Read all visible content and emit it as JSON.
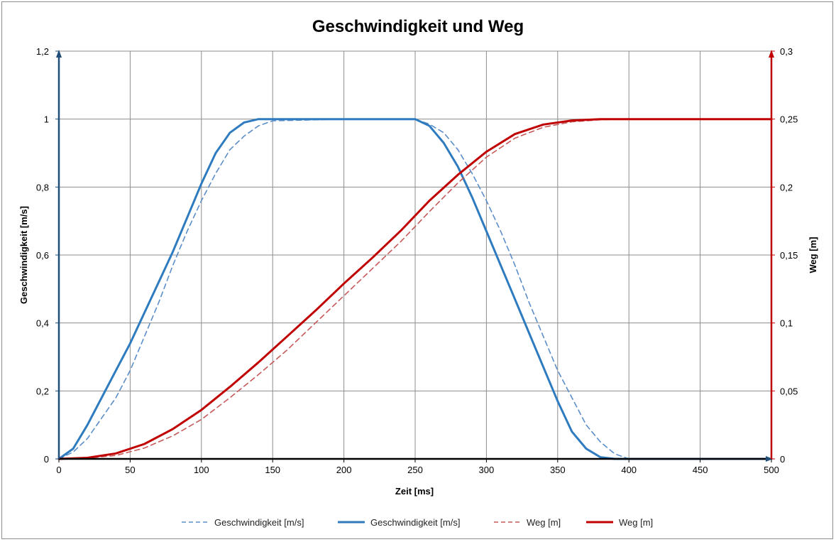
{
  "chart_data": {
    "type": "line",
    "title": "Geschwindigkeit und Weg",
    "xlabel": "Zeit [ms]",
    "ylabel": "Geschwindigkeit [m/s]",
    "y2label": "Weg [m]",
    "xlim": [
      0,
      500
    ],
    "ylim": [
      0,
      1.2
    ],
    "y2lim": [
      0,
      0.3
    ],
    "grid": true,
    "legend_position": "bottom",
    "x_ticks": [
      "0",
      "50",
      "100",
      "150",
      "200",
      "250",
      "300",
      "350",
      "400",
      "450",
      "500"
    ],
    "y_ticks": [
      "0",
      "0,2",
      "0,4",
      "0,6",
      "0,8",
      "1",
      "1,2"
    ],
    "y2_ticks": [
      "0",
      "0,05",
      "0,1",
      "0,15",
      "0,2",
      "0,25",
      "0,3"
    ],
    "colors": {
      "velocity": "#2e7bbf",
      "velocity_dashed": "#5b8ec9",
      "distance": "#c00000",
      "distance_dashed": "#c55a5a",
      "left_axis": "#1f4e79",
      "right_axis": "#c00000",
      "grid": "#8c8c8c"
    },
    "series": [
      {
        "name": "Geschwindigkeit [m/s]",
        "axis": "left",
        "style": "dashed",
        "x": [
          0,
          10,
          20,
          30,
          40,
          50,
          60,
          70,
          80,
          90,
          100,
          110,
          120,
          130,
          140,
          150,
          200,
          250,
          260,
          270,
          280,
          290,
          300,
          310,
          320,
          330,
          340,
          350,
          360,
          370,
          380,
          390,
          400,
          450,
          500
        ],
        "values": [
          0,
          0.02,
          0.06,
          0.12,
          0.18,
          0.26,
          0.36,
          0.46,
          0.57,
          0.67,
          0.76,
          0.84,
          0.91,
          0.95,
          0.98,
          0.995,
          1,
          1,
          0.985,
          0.96,
          0.91,
          0.84,
          0.76,
          0.67,
          0.57,
          0.46,
          0.36,
          0.26,
          0.18,
          0.1,
          0.05,
          0.015,
          0,
          0,
          0
        ]
      },
      {
        "name": "Geschwindigkeit [m/s]",
        "axis": "left",
        "style": "solid",
        "x": [
          0,
          10,
          20,
          30,
          40,
          50,
          60,
          70,
          80,
          90,
          100,
          110,
          120,
          130,
          140,
          150,
          200,
          250,
          260,
          270,
          280,
          290,
          300,
          310,
          320,
          330,
          340,
          350,
          360,
          370,
          380,
          390,
          400,
          450,
          500
        ],
        "values": [
          0,
          0.03,
          0.1,
          0.18,
          0.26,
          0.34,
          0.43,
          0.52,
          0.61,
          0.71,
          0.81,
          0.9,
          0.96,
          0.99,
          1.0,
          1.0,
          1.0,
          1.0,
          0.98,
          0.93,
          0.86,
          0.77,
          0.67,
          0.57,
          0.47,
          0.37,
          0.27,
          0.17,
          0.08,
          0.03,
          0.005,
          0,
          0,
          0,
          0
        ]
      },
      {
        "name": "Weg [m]",
        "axis": "right",
        "style": "dashed",
        "x": [
          0,
          20,
          40,
          60,
          80,
          100,
          120,
          140,
          160,
          180,
          200,
          220,
          240,
          260,
          280,
          300,
          320,
          340,
          360,
          380,
          400,
          450,
          500
        ],
        "values": [
          0,
          0.0005,
          0.0025,
          0.008,
          0.017,
          0.029,
          0.045,
          0.062,
          0.08,
          0.1,
          0.12,
          0.14,
          0.16,
          0.182,
          0.203,
          0.222,
          0.236,
          0.244,
          0.248,
          0.2495,
          0.25,
          0.25,
          0.25
        ]
      },
      {
        "name": "Weg [m]",
        "axis": "right",
        "style": "solid",
        "x": [
          0,
          20,
          40,
          60,
          80,
          100,
          120,
          140,
          160,
          180,
          200,
          220,
          240,
          260,
          280,
          300,
          320,
          340,
          360,
          380,
          400,
          450,
          500
        ],
        "values": [
          0,
          0.0008,
          0.004,
          0.011,
          0.022,
          0.036,
          0.053,
          0.071,
          0.09,
          0.109,
          0.129,
          0.148,
          0.168,
          0.19,
          0.209,
          0.226,
          0.239,
          0.246,
          0.249,
          0.25,
          0.25,
          0.25,
          0.25
        ]
      }
    ]
  }
}
